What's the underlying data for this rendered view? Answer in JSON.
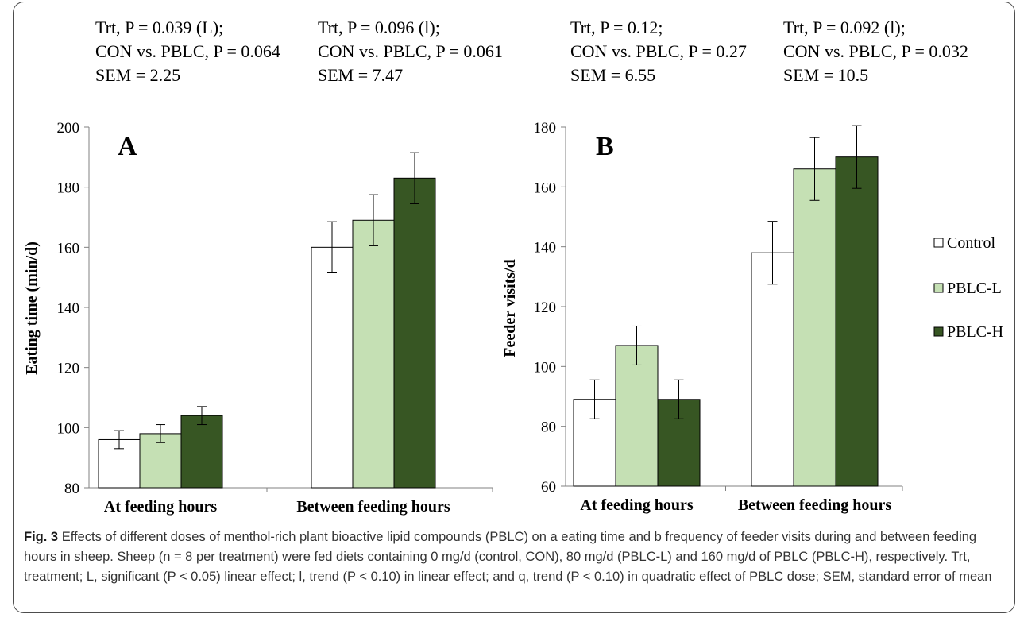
{
  "stats": [
    {
      "lines": [
        "Trt, P = 0.039 (L);",
        "CON vs. PBLC, P = 0.064",
        "SEM = 2.25"
      ]
    },
    {
      "lines": [
        "Trt, P = 0.096 (l);",
        "CON vs. PBLC, P = 0.061",
        "SEM = 7.47"
      ]
    },
    {
      "lines": [
        "Trt, P = 0.12;",
        "CON vs. PBLC, P = 0.27",
        "SEM = 6.55"
      ]
    },
    {
      "lines": [
        "Trt, P = 0.092 (l);",
        "CON vs. PBLC, P = 0.032",
        "SEM = 10.5"
      ]
    }
  ],
  "legend": [
    {
      "name": "Control",
      "color": "#ffffff"
    },
    {
      "name": "PBLC-L",
      "color": "#c5e0b4"
    },
    {
      "name": "PBLC-H",
      "color": "#375623"
    }
  ],
  "chart_data": [
    {
      "type": "bar",
      "panel": "A",
      "ylabel": "Eating time (min/d)",
      "xlabel": "",
      "ylim": [
        80,
        200
      ],
      "yticks": [
        80,
        100,
        120,
        140,
        160,
        180,
        200
      ],
      "categories": [
        "At feeding hours",
        "Between feeding hours"
      ],
      "series": [
        {
          "name": "Control",
          "values": [
            96,
            160
          ],
          "errors": [
            3,
            8.5
          ]
        },
        {
          "name": "PBLC-L",
          "values": [
            98,
            169
          ],
          "errors": [
            3,
            8.5
          ]
        },
        {
          "name": "PBLC-H",
          "values": [
            104,
            183
          ],
          "errors": [
            3,
            8.5
          ]
        }
      ],
      "grid": false,
      "legend": "right"
    },
    {
      "type": "bar",
      "panel": "B",
      "ylabel": "Feeder visits/d",
      "xlabel": "",
      "ylim": [
        60,
        180
      ],
      "yticks": [
        60,
        80,
        100,
        120,
        140,
        160,
        180
      ],
      "categories": [
        "At feeding hours",
        "Between feeding hours"
      ],
      "series": [
        {
          "name": "Control",
          "values": [
            89,
            138
          ],
          "errors": [
            6.5,
            10.5
          ]
        },
        {
          "name": "PBLC-L",
          "values": [
            107,
            166
          ],
          "errors": [
            6.5,
            10.5
          ]
        },
        {
          "name": "PBLC-H",
          "values": [
            89,
            170
          ],
          "errors": [
            6.5,
            10.5
          ]
        }
      ],
      "grid": false,
      "legend": "right"
    }
  ],
  "caption": {
    "fig_label": "Fig. 3",
    "text": "Effects of different doses of menthol-rich plant bioactive lipid compounds (PBLC) on a eating time and b frequency of feeder visits during and between feeding hours in sheep. Sheep (n = 8 per treatment) were fed diets containing 0 mg/d (control, CON), 80 mg/d (PBLC-L) and 160 mg/d of PBLC (PBLC-H), respectively. Trt, treatment; L, significant (P < 0.05) linear effect; l, trend (P < 0.10) in linear effect; and q, trend (P < 0.10) in quadratic effect of PBLC dose; SEM, standard error of mean"
  }
}
